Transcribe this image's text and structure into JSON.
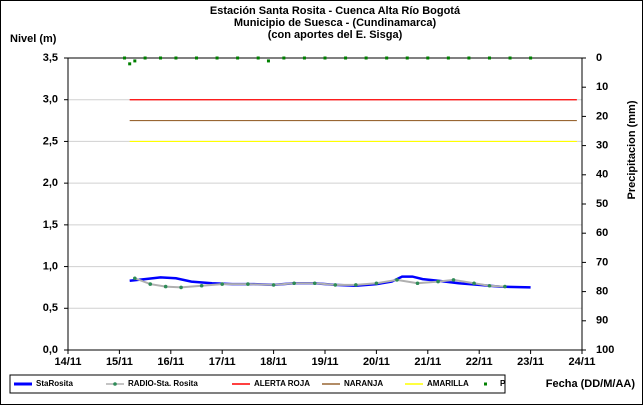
{
  "chart_data": {
    "type": "line",
    "title": [
      "Estación Santa Rosita - Cuenca Alta Río Bogotá",
      "Municipio de Suesca - (Cundinamarca)",
      "(con aportes del  E. Sisga)"
    ],
    "y_label": "Nivel (m)",
    "y2_label": "Precipitacion (mm)",
    "x_label": "Fecha (DD/M/AA)",
    "xlim": [
      14,
      24
    ],
    "xticks": [
      {
        "value": 14,
        "label": "14/11"
      },
      {
        "value": 15,
        "label": "15/11"
      },
      {
        "value": 16,
        "label": "16/11"
      },
      {
        "value": 17,
        "label": "17/11"
      },
      {
        "value": 18,
        "label": "18/11"
      },
      {
        "value": 19,
        "label": "19/11"
      },
      {
        "value": 20,
        "label": "20/11"
      },
      {
        "value": 21,
        "label": "21/11"
      },
      {
        "value": 22,
        "label": "22/11"
      },
      {
        "value": 23,
        "label": "23/11"
      },
      {
        "value": 24,
        "label": "24/11"
      }
    ],
    "ylim": [
      0,
      3.5
    ],
    "yticks": [
      {
        "value": 0,
        "label": "0,0"
      },
      {
        "value": 0.5,
        "label": "0,5"
      },
      {
        "value": 1,
        "label": "1,0"
      },
      {
        "value": 1.5,
        "label": "1,5"
      },
      {
        "value": 2,
        "label": "2,0"
      },
      {
        "value": 2.5,
        "label": "2,5"
      },
      {
        "value": 3,
        "label": "3,0"
      },
      {
        "value": 3.5,
        "label": "3,5"
      }
    ],
    "y2lim": [
      0,
      100
    ],
    "y2_inverted": true,
    "y2ticks": [
      0,
      10,
      20,
      30,
      40,
      50,
      60,
      70,
      80,
      90,
      100
    ],
    "grid": true,
    "series": [
      {
        "name": "StaRosita",
        "color": "#0000ff",
        "style": "line",
        "x": [
          15.2,
          15.5,
          15.8,
          16.1,
          16.4,
          16.8,
          17.2,
          17.6,
          18.0,
          18.4,
          18.8,
          19.2,
          19.6,
          20.0,
          20.3,
          20.5,
          20.7,
          20.9,
          21.2,
          21.6,
          22.0,
          22.4,
          23.0
        ],
        "values": [
          0.83,
          0.85,
          0.87,
          0.86,
          0.82,
          0.8,
          0.79,
          0.79,
          0.78,
          0.8,
          0.8,
          0.78,
          0.77,
          0.79,
          0.82,
          0.88,
          0.88,
          0.85,
          0.83,
          0.8,
          0.78,
          0.76,
          0.75
        ]
      },
      {
        "name": "RADIO-Sta. Rosita",
        "color": "#b0b0b0",
        "marker_color": "#2e8b57",
        "style": "line-marker",
        "x": [
          15.3,
          15.6,
          15.9,
          16.2,
          16.6,
          17.0,
          17.5,
          18.0,
          18.4,
          18.8,
          19.2,
          19.6,
          20.0,
          20.4,
          20.8,
          21.2,
          21.5,
          21.9,
          22.2,
          22.5
        ],
        "values": [
          0.86,
          0.79,
          0.76,
          0.75,
          0.77,
          0.79,
          0.79,
          0.78,
          0.8,
          0.8,
          0.78,
          0.78,
          0.8,
          0.84,
          0.8,
          0.82,
          0.84,
          0.8,
          0.77,
          0.76
        ]
      },
      {
        "name": "ALERTA ROJA",
        "color": "#ff0000",
        "style": "line",
        "x": [
          15.2,
          23.9
        ],
        "values": [
          3,
          3
        ]
      },
      {
        "name": "NARANJA",
        "color": "#996633",
        "style": "line",
        "x": [
          15.2,
          23.9
        ],
        "values": [
          2.75,
          2.75
        ]
      },
      {
        "name": "AMARILLA",
        "color": "#ffff00",
        "style": "line",
        "x": [
          15.2,
          23.9
        ],
        "values": [
          2.5,
          2.5
        ]
      },
      {
        "name": "P",
        "color": "#008000",
        "style": "points",
        "axis": "y2",
        "x": [
          15.1,
          15.2,
          15.3,
          15.5,
          15.8,
          16.1,
          16.5,
          16.9,
          17.3,
          17.7,
          17.9,
          18.2,
          18.6,
          19.0,
          19.4,
          19.8,
          20.2,
          20.6,
          21.0,
          21.4,
          21.8,
          22.2,
          22.6,
          23.0
        ],
        "values": [
          0,
          2,
          1,
          0,
          0,
          0,
          0,
          0,
          0,
          0,
          1,
          0,
          0,
          0,
          0,
          0,
          0,
          0,
          0,
          0,
          0,
          0,
          0,
          0
        ]
      }
    ]
  }
}
